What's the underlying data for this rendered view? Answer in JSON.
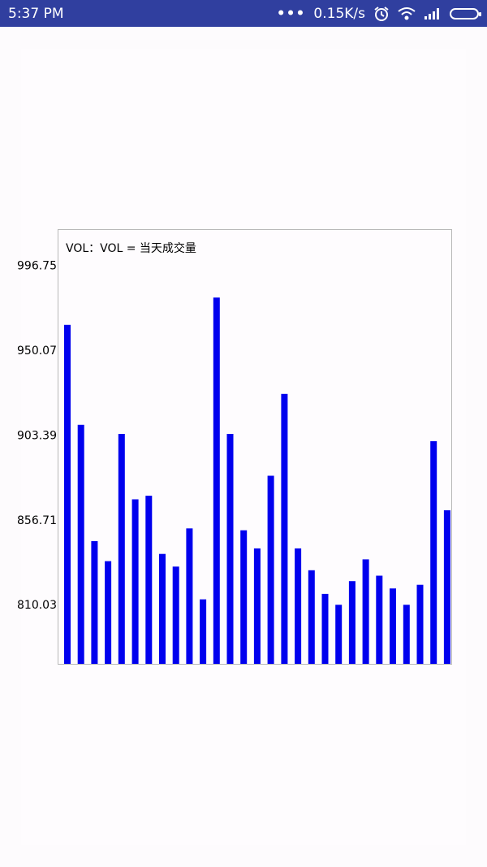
{
  "status_bar": {
    "time": "5:37 PM",
    "network_speed": "0.15K/s",
    "icons": [
      "more-dots-icon",
      "alarm-icon",
      "wifi-icon",
      "signal-icon",
      "battery-icon"
    ]
  },
  "chart_data": {
    "type": "bar",
    "title": "VOL：VOL = 当天成交量",
    "xlabel": "",
    "ylabel": "",
    "ylim": [
      777.5,
      1016.2
    ],
    "y_ticks": [
      "996.75",
      "950.07",
      "903.39",
      "856.71",
      "810.03"
    ],
    "y_tick_values": [
      996.75,
      950.07,
      903.39,
      856.71,
      810.03
    ],
    "values": [
      964,
      909,
      845,
      834,
      904,
      868,
      870,
      838,
      831,
      852,
      813,
      979,
      904,
      851,
      841,
      881,
      926,
      841,
      829,
      816,
      810,
      823,
      835,
      826,
      819,
      810,
      821,
      900,
      862
    ],
    "bar_color": "#0000ee",
    "grid": false,
    "legend": "none"
  }
}
